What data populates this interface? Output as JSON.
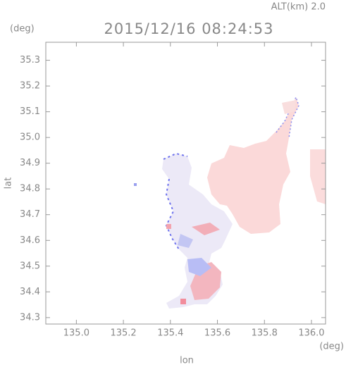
{
  "chart_data": {
    "type": "map",
    "title": "2015/12/16 08:24:53",
    "annotation": "ALT(km) 2.0",
    "xlabel": "lon",
    "ylabel": "lat",
    "x_unit": "(deg)",
    "y_unit": "(deg)",
    "xlim": [
      134.87,
      136.06
    ],
    "ylim": [
      34.275,
      35.37
    ],
    "xticks": [
      {
        "value": 135.0,
        "label": "135.0"
      },
      135.2,
      135.4,
      135.6,
      135.8,
      {
        "value": 136.0,
        "label": "136.0"
      }
    ],
    "yticks": [
      34.3,
      34.4,
      34.5,
      34.6,
      34.7,
      34.8,
      34.9,
      {
        "value": 35.0,
        "label": "35.0"
      },
      35.1,
      35.2,
      35.3
    ]
  }
}
